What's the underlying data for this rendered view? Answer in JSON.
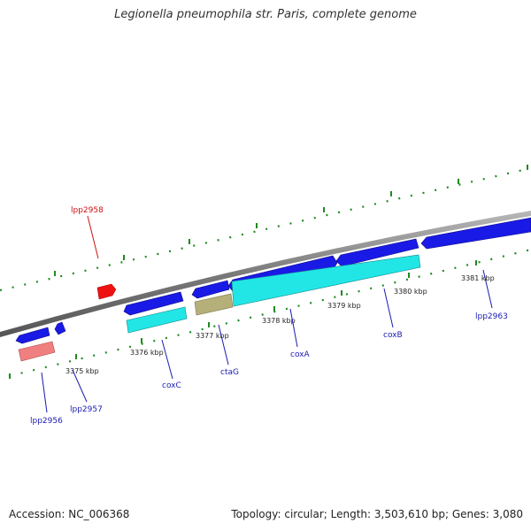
{
  "title": "Legionella pneumophila str. Paris, complete genome",
  "footer": {
    "accession_label": "Accession:",
    "accession": "NC_006368",
    "topology_text": "Topology: circular; Length: 3,503,610 bp; Genes: 3,080"
  },
  "colors": {
    "backbone": "#8a8a8a",
    "tick": "#1f8a1f",
    "forward_gene": "#1a1ae6",
    "cds": "#22e6e6",
    "reverse_gene": "#ee1111",
    "rrna_like": "#f08080",
    "olive": "#b5b07a",
    "label_forward": "#1a1ab3",
    "label_reverse": "#cc1111"
  },
  "kbp_labels": [
    "3375 kbp",
    "3376 kbp",
    "3377 kbp",
    "3378 kbp",
    "3379 kbp",
    "3380 kbp",
    "3381 kbp"
  ],
  "gene_labels": {
    "lpp2958": "lpp2958",
    "lpp2956": "lpp2956",
    "lpp2957": "lpp2957",
    "coxC": "coxC",
    "ctaG": "ctaG",
    "coxA": "coxA",
    "coxB": "coxB",
    "lpp2963": "lpp2963"
  }
}
